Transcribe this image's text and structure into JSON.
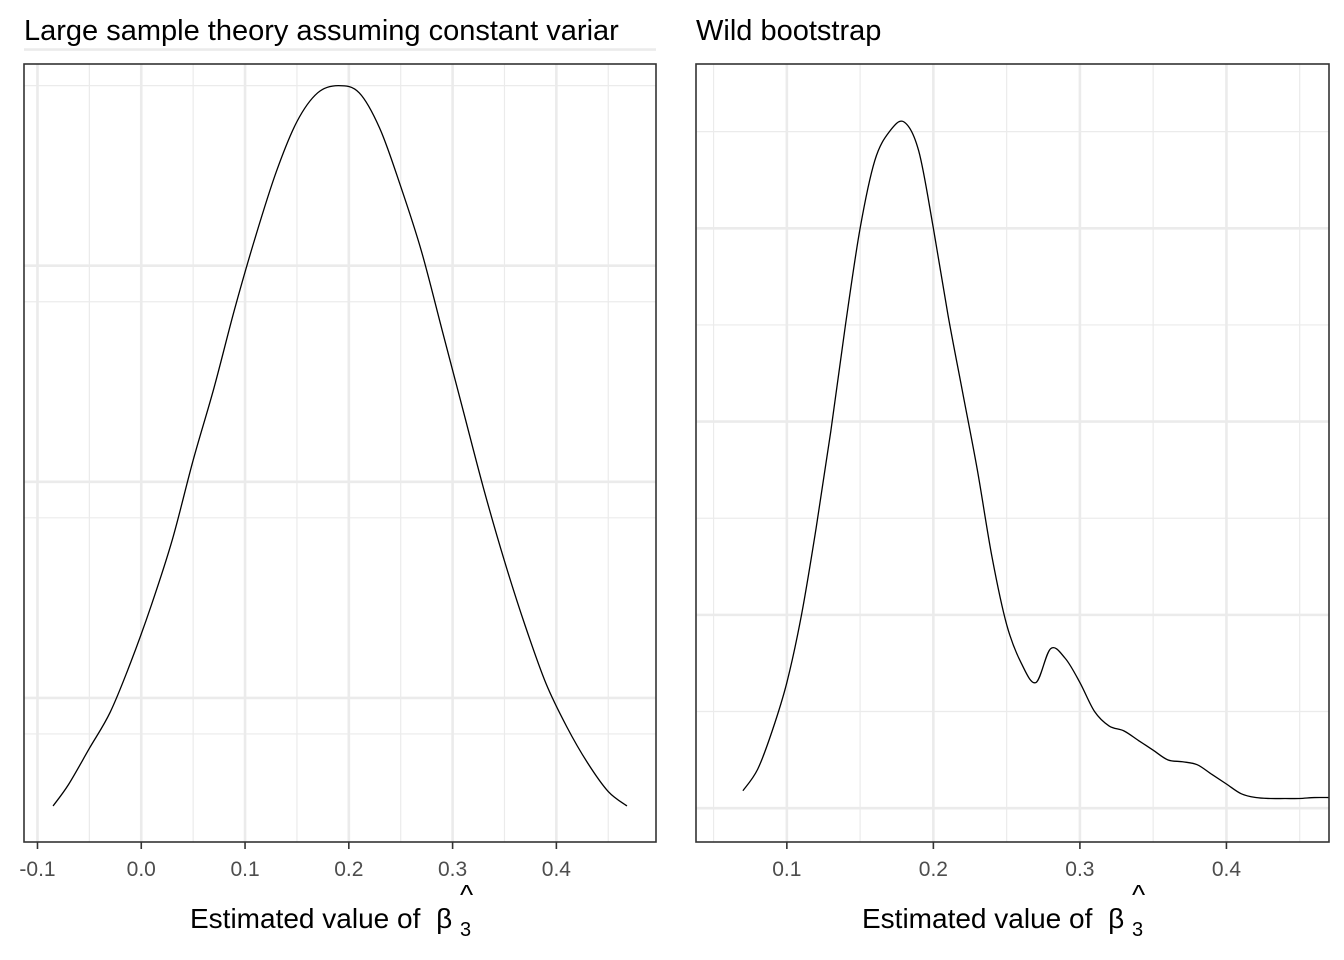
{
  "chart_data": [
    {
      "type": "line",
      "title": "Large sample theory assuming constant variar",
      "xlabel": "Estimated value of β̂3",
      "xlabel_main": "Estimated value of",
      "xlabel_symbol": "β",
      "xlabel_hat": "^",
      "xlabel_subscript": "3",
      "ylabel": "",
      "xlim": [
        -0.113,
        0.496
      ],
      "ylim": [
        0.0,
        1.08
      ],
      "x_ticks": [
        -0.1,
        0.0,
        0.1,
        0.2,
        0.3,
        0.4
      ],
      "x_tick_labels": [
        "-0.1",
        "0.0",
        "0.1",
        "0.2",
        "0.3",
        "0.4"
      ],
      "y_tick_labels_visible": false,
      "grid": true,
      "major_y": [
        0.2,
        0.5,
        0.8,
        1.1
      ],
      "minor_x": [
        -0.05,
        0.05,
        0.15,
        0.25,
        0.35,
        0.45
      ],
      "minor_y": [
        0.15,
        0.45,
        0.75,
        1.05
      ],
      "series": [
        {
          "x": [
            -0.085,
            -0.07,
            -0.05,
            -0.03,
            -0.01,
            0.01,
            0.03,
            0.05,
            0.07,
            0.09,
            0.11,
            0.13,
            0.15,
            0.17,
            0.19,
            0.21,
            0.23,
            0.25,
            0.27,
            0.29,
            0.31,
            0.33,
            0.35,
            0.37,
            0.39,
            0.41,
            0.43,
            0.45,
            0.468
          ],
          "y": [
            0.05,
            0.08,
            0.13,
            0.18,
            0.25,
            0.33,
            0.42,
            0.53,
            0.63,
            0.74,
            0.84,
            0.93,
            1.0,
            1.04,
            1.05,
            1.04,
            0.99,
            0.91,
            0.82,
            0.71,
            0.6,
            0.49,
            0.39,
            0.3,
            0.22,
            0.16,
            0.11,
            0.07,
            0.05
          ]
        }
      ]
    },
    {
      "type": "line",
      "title": "Wild bootstrap",
      "xlabel": "Estimated value of β̂3",
      "xlabel_main": "Estimated value of",
      "xlabel_symbol": "β",
      "xlabel_hat": "^",
      "xlabel_subscript": "3",
      "ylabel": "",
      "xlim": [
        0.038,
        0.47
      ],
      "ylim": [
        -0.035,
        0.77
      ],
      "x_ticks": [
        0.1,
        0.2,
        0.3,
        0.4
      ],
      "x_tick_labels": [
        "0.1",
        "0.2",
        "0.3",
        "0.4"
      ],
      "y_tick_labels_visible": false,
      "grid": true,
      "major_y": [
        0.0,
        0.2,
        0.4,
        0.6
      ],
      "minor_x": [
        0.05,
        0.15,
        0.25,
        0.35,
        0.45
      ],
      "minor_y": [
        0.1,
        0.3,
        0.5,
        0.7
      ],
      "series": [
        {
          "x": [
            0.07,
            0.08,
            0.09,
            0.1,
            0.11,
            0.12,
            0.13,
            0.14,
            0.15,
            0.16,
            0.17,
            0.18,
            0.19,
            0.2,
            0.21,
            0.22,
            0.23,
            0.24,
            0.25,
            0.26,
            0.27,
            0.28,
            0.29,
            0.3,
            0.31,
            0.32,
            0.33,
            0.34,
            0.35,
            0.36,
            0.37,
            0.38,
            0.39,
            0.4,
            0.41,
            0.42,
            0.43,
            0.44,
            0.45,
            0.46,
            0.47
          ],
          "y": [
            0.018,
            0.04,
            0.08,
            0.13,
            0.2,
            0.29,
            0.39,
            0.5,
            0.6,
            0.67,
            0.7,
            0.71,
            0.68,
            0.6,
            0.51,
            0.43,
            0.35,
            0.26,
            0.19,
            0.15,
            0.13,
            0.165,
            0.155,
            0.13,
            0.1,
            0.085,
            0.08,
            0.07,
            0.06,
            0.05,
            0.048,
            0.045,
            0.035,
            0.025,
            0.015,
            0.011,
            0.01,
            0.01,
            0.01,
            0.011,
            0.011
          ]
        }
      ]
    }
  ]
}
